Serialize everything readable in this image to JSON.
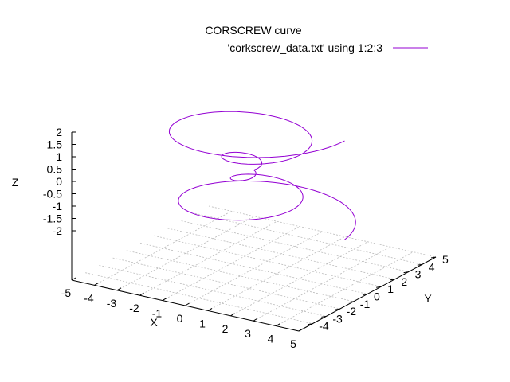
{
  "chart_data": {
    "type": "line",
    "title": "CORSCREW curve",
    "legend": {
      "position": "top-right",
      "entries": [
        {
          "label": "'corkscrew_data.txt' using 1:2:3",
          "color": "#9400d3"
        }
      ]
    },
    "xlabel": "X",
    "ylabel": "Y",
    "zlabel": "Z",
    "xlim": [
      -5,
      5
    ],
    "ylim": [
      -5,
      5
    ],
    "zlim": [
      -2,
      2
    ],
    "x_ticks": [
      "-5",
      "-4",
      "-3",
      "-2",
      "-1",
      "0",
      "1",
      "2",
      "3",
      "4",
      "5"
    ],
    "y_ticks": [
      "-4",
      "-3",
      "-2",
      "-1",
      "0",
      "1",
      "2",
      "3",
      "4",
      "5"
    ],
    "z_ticks": [
      "2",
      "1.5",
      "1",
      "0.5",
      "0",
      "-0.5",
      "-1",
      "-1.5",
      "-2"
    ],
    "grid": true,
    "series": [
      {
        "color": "#9400d3",
        "description": "conical helix, radius growing linearly with height",
        "turns": 4,
        "t_range": [
          -2,
          2
        ],
        "max_radius": 4
      }
    ]
  }
}
